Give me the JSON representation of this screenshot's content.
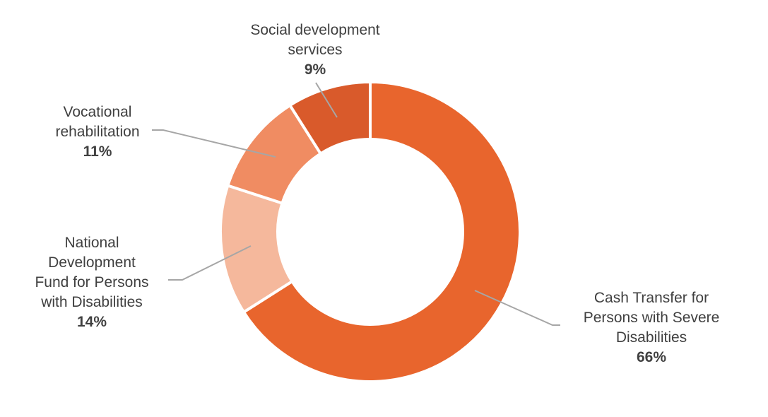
{
  "chart_data": {
    "type": "pie",
    "variant": "donut",
    "slices": [
      {
        "name": "Cash Transfer for Persons with Severe Disabilities",
        "label_lines": [
          "Cash Transfer for",
          "Persons with Severe",
          "Disabilities"
        ],
        "value": 66,
        "value_label": "66%",
        "color": "#E8652D"
      },
      {
        "name": "National Development Fund for Persons with Disabilities",
        "label_lines": [
          "National",
          "Development",
          "Fund for Persons",
          "with Disabilities"
        ],
        "value": 14,
        "value_label": "14%",
        "color": "#F5B89C"
      },
      {
        "name": "Vocational rehabilitation",
        "label_lines": [
          "Vocational",
          "rehabilitation"
        ],
        "value": 11,
        "value_label": "11%",
        "color": "#F08C62"
      },
      {
        "name": "Social development services",
        "label_lines": [
          "Social development",
          "services"
        ],
        "value": 9,
        "value_label": "9%",
        "color": "#D95A2B"
      }
    ]
  }
}
